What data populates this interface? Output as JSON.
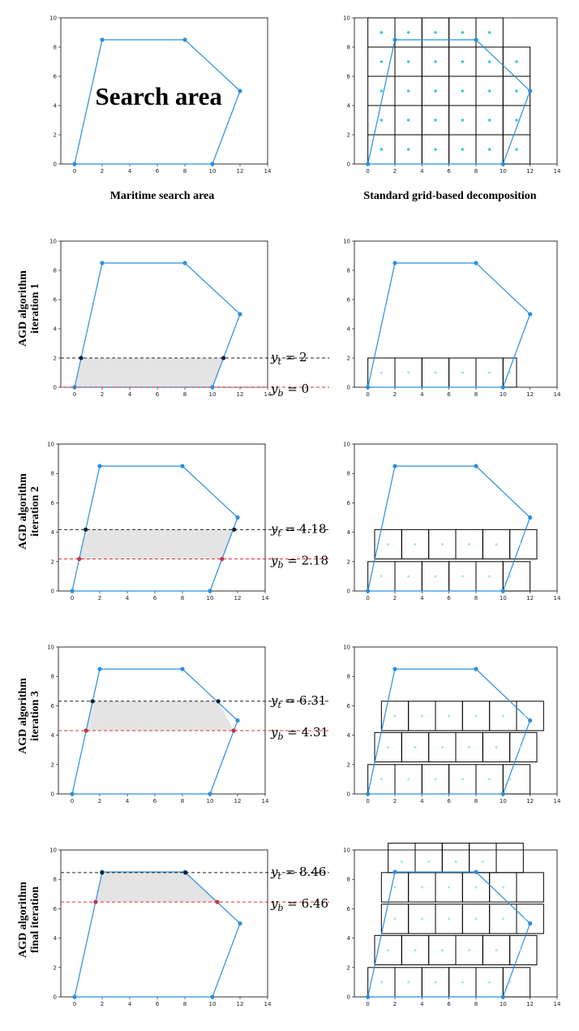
{
  "figure": {
    "colors": {
      "polygon": "#2b8fe0",
      "vertex": "#2b8fe0",
      "cell_center": "#3ccbd6",
      "cell_center_light": "#a6e3ef",
      "top_line": "#222222",
      "top_point": "#17223b",
      "bottom_line": "#e0303a",
      "bottom_point": "#c8334a",
      "band": "#e4e4e4",
      "grid": "#000000"
    },
    "polygon_vertices": [
      [
        0,
        0
      ],
      [
        2,
        8.5
      ],
      [
        8,
        8.5
      ],
      [
        12,
        5
      ],
      [
        10,
        0
      ]
    ],
    "row_labels": [
      {
        "line1": "AGD algorithm",
        "line2": "iteration 1"
      },
      {
        "line1": "AGD algorithm",
        "line2": "iteration 2"
      },
      {
        "line1": "AGD algorithm",
        "line2": "iteration 3"
      },
      {
        "line1": "AGD algorithm",
        "line2": "final iteration"
      }
    ]
  },
  "chart_data": [
    {
      "type": "scatter",
      "panel": "maritime-search-area",
      "caption": "Maritime search area",
      "inplot_text": "Search area",
      "xlim": [
        -1,
        14
      ],
      "ylim": [
        0,
        10
      ],
      "xticks": [
        0,
        2,
        4,
        6,
        8,
        10,
        12,
        14
      ],
      "yticks": [
        0,
        2,
        4,
        6,
        8,
        10
      ],
      "series": [
        {
          "values": [
            [
              0,
              0
            ],
            [
              2,
              8.5
            ],
            [
              8,
              8.5
            ],
            [
              12,
              5
            ],
            [
              10,
              0
            ]
          ]
        }
      ]
    },
    {
      "type": "scatter",
      "panel": "standard-grid-decomposition",
      "caption": "Standard grid-based decomposition",
      "xlim": [
        -1,
        14
      ],
      "ylim": [
        0,
        10
      ],
      "xticks": [
        0,
        2,
        4,
        6,
        8,
        10,
        12,
        14
      ],
      "yticks": [
        0,
        2,
        4,
        6,
        8,
        10
      ],
      "cell_size": 2,
      "grid_rows": [
        {
          "y0": 0,
          "x0": 0,
          "n": 6
        },
        {
          "y0": 2,
          "x0": 0,
          "n": 6
        },
        {
          "y0": 4,
          "x0": 0,
          "n": 6
        },
        {
          "y0": 6,
          "x0": 0,
          "n": 6
        },
        {
          "y0": 8,
          "x0": 0,
          "n": 5
        }
      ],
      "cell_centers": [
        [
          1,
          1
        ],
        [
          3,
          1
        ],
        [
          5,
          1
        ],
        [
          7,
          1
        ],
        [
          9,
          1
        ],
        [
          11,
          1
        ],
        [
          1,
          3
        ],
        [
          3,
          3
        ],
        [
          5,
          3
        ],
        [
          7,
          3
        ],
        [
          9,
          3
        ],
        [
          11,
          3
        ],
        [
          1,
          5
        ],
        [
          3,
          5
        ],
        [
          5,
          5
        ],
        [
          7,
          5
        ],
        [
          9,
          5
        ],
        [
          11,
          5
        ],
        [
          1,
          7
        ],
        [
          3,
          7
        ],
        [
          5,
          7
        ],
        [
          7,
          7
        ],
        [
          9,
          7
        ],
        [
          11,
          7
        ],
        [
          1,
          9
        ],
        [
          3,
          9
        ],
        [
          5,
          9
        ],
        [
          7,
          9
        ],
        [
          9,
          9
        ]
      ]
    },
    {
      "type": "line",
      "panel": "agd-iteration-1-band",
      "xlim": [
        -1,
        14
      ],
      "ylim": [
        0,
        10
      ],
      "xticks": [
        0,
        2,
        4,
        6,
        8,
        10,
        12,
        14
      ],
      "yticks": [
        0,
        2,
        4,
        6,
        8,
        10
      ],
      "y_top": 2,
      "y_bottom": 0,
      "annotation_top": {
        "var": "y",
        "sub": "t",
        "rest": " = 2"
      },
      "annotation_bottom": {
        "var": "y",
        "sub": "b",
        "rest": " = 0"
      },
      "top_points": [
        [
          0.47,
          2
        ],
        [
          10.8,
          2
        ]
      ],
      "bottom_points": [
        [
          0,
          0
        ],
        [
          10,
          0
        ]
      ]
    },
    {
      "type": "scatter",
      "panel": "agd-iteration-1-grid",
      "xlim": [
        -1,
        14
      ],
      "ylim": [
        0,
        10
      ],
      "xticks": [
        0,
        2,
        4,
        6,
        8,
        10,
        12,
        14
      ],
      "yticks": [
        0,
        2,
        4,
        6,
        8,
        10
      ],
      "cell_size": 2,
      "grid_rows": [
        {
          "y0": 0,
          "x0": 0,
          "n": 5,
          "last_width": 1.0
        }
      ],
      "cell_centers": [
        [
          1,
          1
        ],
        [
          3,
          1
        ],
        [
          5,
          1
        ],
        [
          7,
          1
        ],
        [
          9,
          1
        ],
        [
          10.5,
          1
        ]
      ]
    },
    {
      "type": "line",
      "panel": "agd-iteration-2-band",
      "xlim": [
        -1,
        14
      ],
      "ylim": [
        0,
        10
      ],
      "xticks": [
        0,
        2,
        4,
        6,
        8,
        10,
        12,
        14
      ],
      "yticks": [
        0,
        2,
        4,
        6,
        8,
        10
      ],
      "y_top": 4.18,
      "y_bottom": 2.18,
      "annotation_top": {
        "var": "y",
        "sub": "t",
        "rest": " = 4.18"
      },
      "annotation_bottom": {
        "var": "y",
        "sub": "b",
        "rest": " = 2.18"
      },
      "top_points": [
        [
          0.98,
          4.18
        ],
        [
          11.75,
          4.18
        ]
      ],
      "bottom_points": [
        [
          0.51,
          2.18
        ],
        [
          10.87,
          2.18
        ]
      ]
    },
    {
      "type": "scatter",
      "panel": "agd-iteration-2-grid",
      "xlim": [
        -1,
        14
      ],
      "ylim": [
        0,
        10
      ],
      "xticks": [
        0,
        2,
        4,
        6,
        8,
        10,
        12,
        14
      ],
      "yticks": [
        0,
        2,
        4,
        6,
        8,
        10
      ],
      "cell_size": 2,
      "grid_rows": [
        {
          "y0": 0,
          "x0": 0,
          "n": 6
        },
        {
          "y0": 2.18,
          "x0": 0.5,
          "n": 6
        }
      ],
      "cell_centers": [
        [
          1,
          1
        ],
        [
          3,
          1
        ],
        [
          5,
          1
        ],
        [
          7,
          1
        ],
        [
          9,
          1
        ],
        [
          10.5,
          1
        ],
        [
          1.5,
          3.18
        ],
        [
          3.5,
          3.18
        ],
        [
          5.5,
          3.18
        ],
        [
          7.5,
          3.18
        ],
        [
          9.5,
          3.18
        ],
        [
          11.3,
          3.18
        ]
      ]
    },
    {
      "type": "line",
      "panel": "agd-iteration-3-band",
      "xlim": [
        -1,
        14
      ],
      "ylim": [
        0,
        10
      ],
      "xticks": [
        0,
        2,
        4,
        6,
        8,
        10,
        12,
        14
      ],
      "yticks": [
        0,
        2,
        4,
        6,
        8,
        10
      ],
      "y_top": 6.31,
      "y_bottom": 4.31,
      "annotation_top": {
        "var": "y",
        "sub": "t",
        "rest": " = 6.31"
      },
      "annotation_bottom": {
        "var": "y",
        "sub": "b",
        "rest": " = 4.31"
      },
      "top_points": [
        [
          1.48,
          6.31
        ],
        [
          10.6,
          6.31
        ]
      ],
      "bottom_points": [
        [
          1.01,
          4.31
        ],
        [
          11.72,
          4.31
        ]
      ]
    },
    {
      "type": "scatter",
      "panel": "agd-iteration-3-grid",
      "xlim": [
        -1,
        14
      ],
      "ylim": [
        0,
        10
      ],
      "xticks": [
        0,
        2,
        4,
        6,
        8,
        10,
        12,
        14
      ],
      "yticks": [
        0,
        2,
        4,
        6,
        8,
        10
      ],
      "cell_size": 2,
      "grid_rows": [
        {
          "y0": 0,
          "x0": 0,
          "n": 6
        },
        {
          "y0": 2.18,
          "x0": 0.5,
          "n": 6
        },
        {
          "y0": 4.31,
          "x0": 1.0,
          "n": 6
        }
      ],
      "cell_centers": [
        [
          1,
          1
        ],
        [
          3,
          1
        ],
        [
          5,
          1
        ],
        [
          7,
          1
        ],
        [
          9,
          1
        ],
        [
          10.5,
          1
        ],
        [
          1.5,
          3.18
        ],
        [
          3.5,
          3.18
        ],
        [
          5.5,
          3.18
        ],
        [
          7.5,
          3.18
        ],
        [
          9.5,
          3.18
        ],
        [
          11.3,
          3.18
        ],
        [
          2,
          5.31
        ],
        [
          4,
          5.31
        ],
        [
          6,
          5.31
        ],
        [
          8,
          5.31
        ],
        [
          10,
          5.31
        ],
        [
          11.6,
          5.31
        ]
      ]
    },
    {
      "type": "line",
      "panel": "agd-final-iteration-band",
      "xlim": [
        -1,
        14
      ],
      "ylim": [
        0,
        10
      ],
      "xticks": [
        0,
        2,
        4,
        6,
        8,
        10,
        12,
        14
      ],
      "yticks": [
        0,
        2,
        4,
        6,
        8,
        10
      ],
      "y_top": 8.46,
      "y_bottom": 6.46,
      "annotation_top": {
        "var": "y",
        "sub": "t",
        "rest": " = 8.46"
      },
      "annotation_bottom": {
        "var": "y",
        "sub": "b",
        "rest": " = 6.46"
      },
      "top_points": [
        [
          1.99,
          8.46
        ],
        [
          8.05,
          8.46
        ]
      ],
      "bottom_points": [
        [
          1.52,
          6.46
        ],
        [
          10.35,
          6.46
        ]
      ]
    },
    {
      "type": "scatter",
      "panel": "agd-final-iteration-grid",
      "xlim": [
        -1,
        14
      ],
      "ylim": [
        0,
        10
      ],
      "xticks": [
        0,
        2,
        4,
        6,
        8,
        10,
        12,
        14
      ],
      "yticks": [
        0,
        2,
        4,
        6,
        8,
        10
      ],
      "cell_size": 2,
      "grid_rows": [
        {
          "y0": 0,
          "x0": 0,
          "n": 6
        },
        {
          "y0": 2.18,
          "x0": 0.5,
          "n": 6
        },
        {
          "y0": 4.31,
          "x0": 1.0,
          "n": 6
        },
        {
          "y0": 6.46,
          "x0": 1.0,
          "n": 6
        },
        {
          "y0": 8.46,
          "x0": 1.5,
          "n": 5
        }
      ],
      "cell_centers": [
        [
          1,
          1
        ],
        [
          3,
          1
        ],
        [
          5,
          1
        ],
        [
          7,
          1
        ],
        [
          9,
          1
        ],
        [
          10.5,
          1
        ],
        [
          1.5,
          3.18
        ],
        [
          3.5,
          3.18
        ],
        [
          5.5,
          3.18
        ],
        [
          7.5,
          3.18
        ],
        [
          9.5,
          3.18
        ],
        [
          11.3,
          3.18
        ],
        [
          2,
          5.31
        ],
        [
          4,
          5.31
        ],
        [
          6,
          5.31
        ],
        [
          8,
          5.31
        ],
        [
          10,
          5.31
        ],
        [
          11.6,
          5.31
        ],
        [
          2,
          7.46
        ],
        [
          4,
          7.46
        ],
        [
          6,
          7.46
        ],
        [
          8,
          7.46
        ],
        [
          10,
          7.46
        ],
        [
          2.5,
          9.2
        ],
        [
          4.5,
          9.2
        ],
        [
          6.5,
          9.2
        ],
        [
          8.5,
          9.2
        ]
      ]
    }
  ]
}
